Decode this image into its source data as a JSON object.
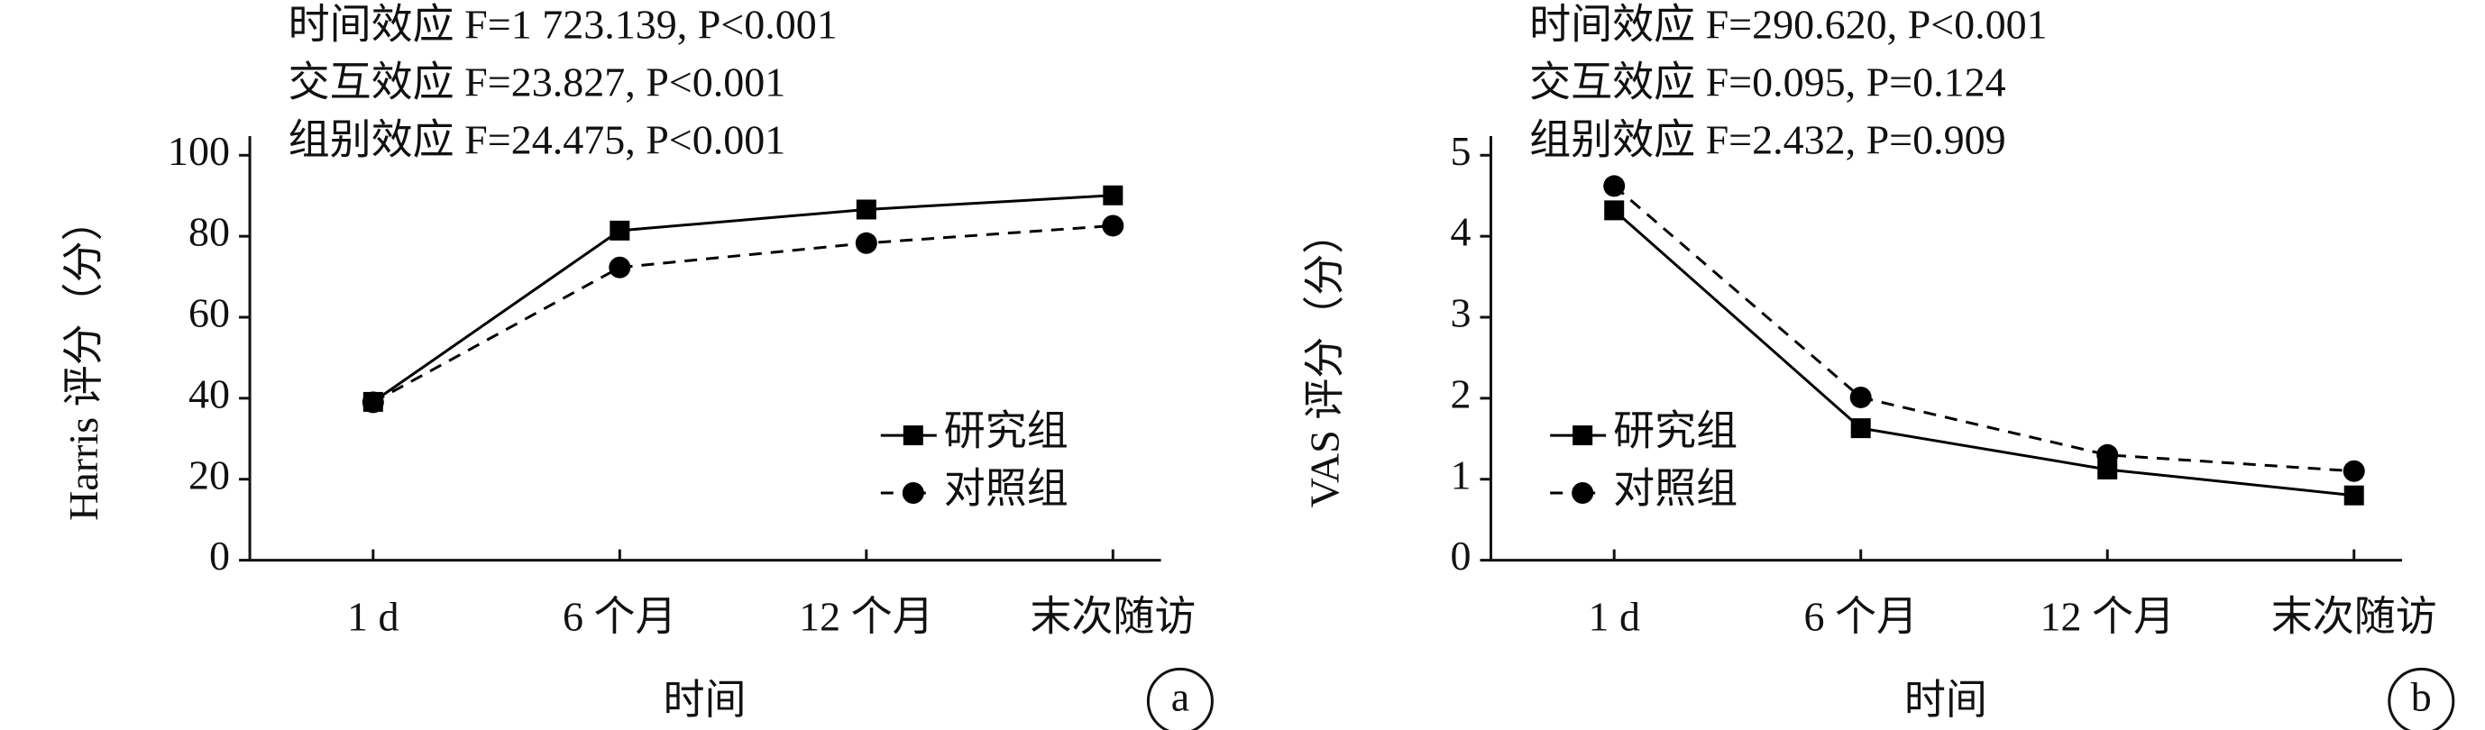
{
  "chart_data": [
    {
      "type": "line",
      "panel_label": "a",
      "annotations": [
        "时间效应 F=1 723.139, P<0.001",
        "交互效应 F=23.827, P<0.001",
        "组别效应 F=24.475, P<0.001"
      ],
      "y_label": "Harris 评分（分）",
      "x_label": "时间",
      "categories": [
        "1 d",
        "6 个月",
        "12 个月",
        "末次随访"
      ],
      "series": [
        {
          "name": "研究组",
          "color": "#000000",
          "line": "solid",
          "marker": "square",
          "values": [
            39.1,
            81.4,
            86.6,
            90.1
          ]
        },
        {
          "name": "对照组",
          "color": "#000000",
          "line": "dashed",
          "marker": "circle",
          "values": [
            39,
            72.3,
            78.3,
            82.6
          ]
        }
      ],
      "ylim": [
        0,
        100
      ],
      "yticks": [
        0,
        20,
        40,
        60,
        80,
        100
      ],
      "legend": "lower right"
    },
    {
      "type": "line",
      "panel_label": "b",
      "annotations": [
        "时间效应 F=290.620, P<0.001",
        "交互效应 F=0.095, P=0.124",
        "组别效应 F=2.432, P=0.909"
      ],
      "y_label": "VAS 评分（分）",
      "x_label": "时间",
      "categories": [
        "1 d",
        "6 个月",
        "12 个月",
        "末次随访"
      ],
      "series": [
        {
          "name": "研究组",
          "color": "#000000",
          "line": "solid",
          "marker": "square",
          "values": [
            4.32,
            1.63,
            1.12,
            0.8
          ]
        },
        {
          "name": "对照组",
          "color": "#000000",
          "line": "dashed",
          "marker": "circle",
          "values": [
            4.62,
            2.01,
            1.3,
            1.1
          ]
        }
      ],
      "ylim": [
        0,
        5
      ],
      "yticks": [
        0,
        1,
        2,
        3,
        4,
        5
      ],
      "legend": "lower left"
    }
  ]
}
